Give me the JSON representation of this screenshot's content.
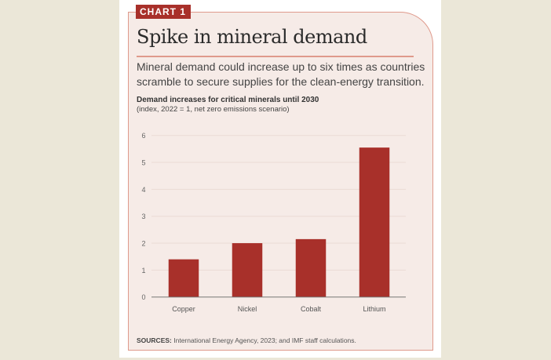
{
  "badge": "CHART 1",
  "title": "Spike in mineral demand",
  "subtitle": "Mineral demand could increase up to six times as countries scramble to secure supplies for the clean-energy transition.",
  "sources_label": "SOURCES:",
  "sources_text": "International Energy Agency, 2023; and IMF staff calculations.",
  "colors": {
    "bar": "#a8302a",
    "background": "#f6ebe7",
    "accent": "#df9a8c"
  },
  "chart_data": {
    "type": "bar",
    "title": "Demand increases for critical minerals until 2030",
    "subtitle": "(index, 2022 = 1, net zero emissions scenario)",
    "categories": [
      "Copper",
      "Nickel",
      "Cobalt",
      "Lithium"
    ],
    "values": [
      1.4,
      2.0,
      2.15,
      5.55
    ],
    "ylim": [
      0,
      6
    ],
    "yticks": [
      0,
      1,
      2,
      3,
      4,
      5,
      6
    ],
    "grid": true,
    "xlabel": "",
    "ylabel": ""
  }
}
